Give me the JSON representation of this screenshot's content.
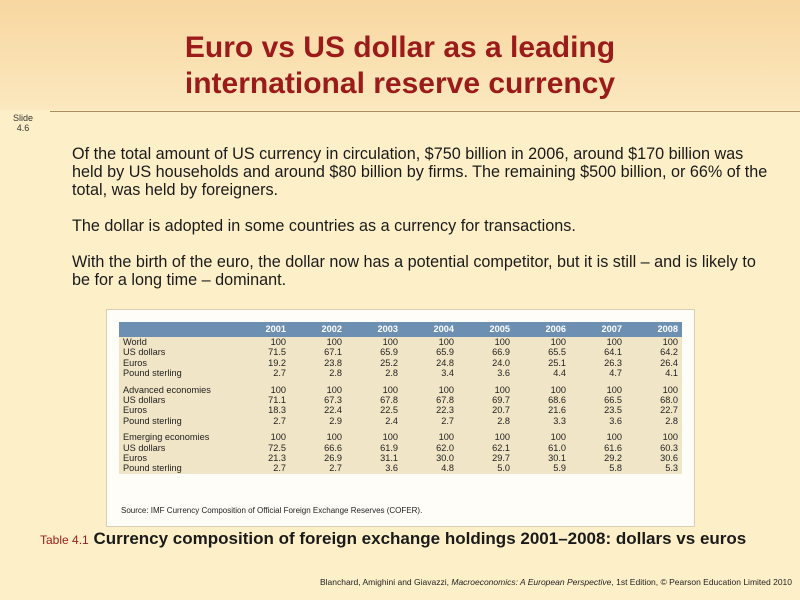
{
  "title_line1": "Euro vs US dollar as a leading",
  "title_line2": "international reserve currency",
  "slide_label_1": "Slide",
  "slide_label_2": "4.6",
  "paragraphs": [
    "Of the total amount of US currency in circulation, $750 billion in 2006, around $170 billion was held by US households and around $80 billion by firms. The remaining $500 billion, or 66% of the total, was held by foreigners.",
    "The dollar is adopted in some countries as a currency for transactions.",
    "With the birth of the euro, the dollar now has a potential competitor, but it is still – and is likely to be for a long time – dominant."
  ],
  "table": {
    "years": [
      "2001",
      "2002",
      "2003",
      "2004",
      "2005",
      "2006",
      "2007",
      "2008"
    ],
    "groups": [
      {
        "rows": [
          {
            "label": "World",
            "values": [
              "100",
              "100",
              "100",
              "100",
              "100",
              "100",
              "100",
              "100"
            ]
          },
          {
            "label": "US dollars",
            "values": [
              "71.5",
              "67.1",
              "65.9",
              "65.9",
              "66.9",
              "65.5",
              "64.1",
              "64.2"
            ]
          },
          {
            "label": "Euros",
            "values": [
              "19.2",
              "23.8",
              "25.2",
              "24.8",
              "24.0",
              "25.1",
              "26.3",
              "26.4"
            ]
          },
          {
            "label": "Pound sterling",
            "values": [
              "2.7",
              "2.8",
              "2.8",
              "3.4",
              "3.6",
              "4.4",
              "4.7",
              "4.1"
            ]
          }
        ]
      },
      {
        "rows": [
          {
            "label": "Advanced economies",
            "values": [
              "100",
              "100",
              "100",
              "100",
              "100",
              "100",
              "100",
              "100"
            ]
          },
          {
            "label": "US dollars",
            "values": [
              "71.1",
              "67.3",
              "67.8",
              "67.8",
              "69.7",
              "68.6",
              "66.5",
              "68.0"
            ]
          },
          {
            "label": "Euros",
            "values": [
              "18.3",
              "22.4",
              "22.5",
              "22.3",
              "20.7",
              "21.6",
              "23.5",
              "22.7"
            ]
          },
          {
            "label": "Pound sterling",
            "values": [
              "2.7",
              "2.9",
              "2.4",
              "2.7",
              "2.8",
              "3.3",
              "3.6",
              "2.8"
            ]
          }
        ]
      },
      {
        "rows": [
          {
            "label": "Emerging economies",
            "values": [
              "100",
              "100",
              "100",
              "100",
              "100",
              "100",
              "100",
              "100"
            ]
          },
          {
            "label": "US dollars",
            "values": [
              "72.5",
              "66.6",
              "61.9",
              "62.0",
              "62.1",
              "61.0",
              "61.6",
              "60.3"
            ]
          },
          {
            "label": "Euros",
            "values": [
              "21.3",
              "26.9",
              "31.1",
              "30.0",
              "29.7",
              "30.1",
              "29.2",
              "30.6"
            ]
          },
          {
            "label": "Pound sterling",
            "values": [
              "2.7",
              "2.7",
              "3.6",
              "4.8",
              "5.0",
              "5.9",
              "5.8",
              "5.3"
            ]
          }
        ]
      }
    ],
    "source": "Source: IMF Currency Composition of Official Foreign Exchange Reserves (COFER)."
  },
  "caption_number": "Table 4.1",
  "caption_text": "Currency composition of foreign exchange holdings 2001–2008: dollars vs euros",
  "footer_pre": "Blanchard, Amighini and Giavazzi,",
  "footer_book": "Macroeconomics: A European Perspective",
  "footer_edition": ", 1st Edition, © Pearson Education Limited 2010",
  "colors": {
    "title": "#9b1b1b",
    "header_fill": "#6d8fb1",
    "row_fill": "#f0e5c6"
  }
}
